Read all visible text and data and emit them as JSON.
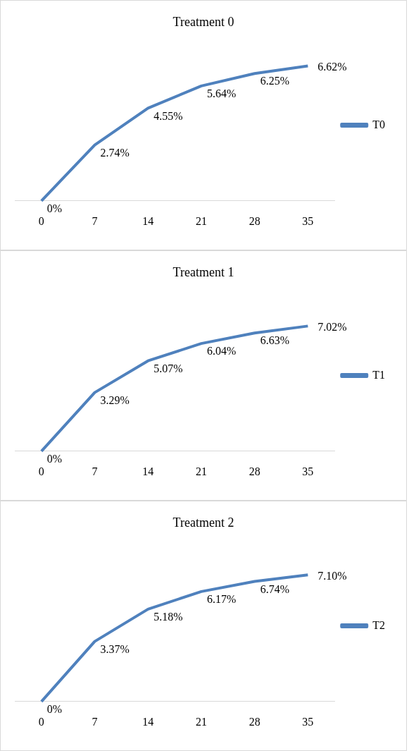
{
  "chart_data": [
    {
      "type": "line",
      "title": "Treatment 0",
      "categories": [
        "0",
        "7",
        "14",
        "21",
        "28",
        "35"
      ],
      "legend": "right",
      "grid": false,
      "marker": "none",
      "series": [
        {
          "name": "T0",
          "color": "#4f81bd",
          "values": [
            0,
            2.74,
            4.55,
            5.64,
            6.25,
            6.62
          ],
          "value_labels": [
            "0%",
            "2.74%",
            "4.55%",
            "5.64%",
            "6.25%",
            "6.62%"
          ]
        }
      ]
    },
    {
      "type": "line",
      "title": "Treatment 1",
      "categories": [
        "0",
        "7",
        "14",
        "21",
        "28",
        "35"
      ],
      "legend": "right",
      "grid": false,
      "marker": "none",
      "series": [
        {
          "name": "T1",
          "color": "#4f81bd",
          "values": [
            0,
            3.29,
            5.07,
            6.04,
            6.63,
            7.02
          ],
          "value_labels": [
            "0%",
            "3.29%",
            "5.07%",
            "6.04%",
            "6.63%",
            "7.02%"
          ]
        }
      ]
    },
    {
      "type": "line",
      "title": "Treatment 2",
      "categories": [
        "0",
        "7",
        "14",
        "21",
        "28",
        "35"
      ],
      "legend": "right",
      "grid": false,
      "marker": "none",
      "series": [
        {
          "name": "T2",
          "color": "#4f81bd",
          "values": [
            0,
            3.37,
            5.18,
            6.17,
            6.74,
            7.1
          ],
          "value_labels": [
            "0%",
            "3.37%",
            "5.18%",
            "6.17%",
            "6.74%",
            "7.10%"
          ]
        }
      ]
    }
  ]
}
